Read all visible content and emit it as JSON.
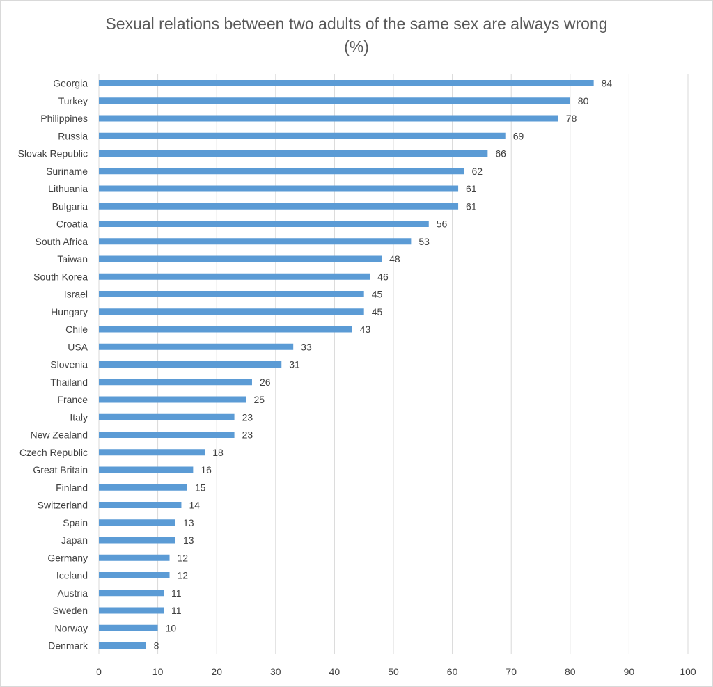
{
  "chart_data": {
    "type": "bar",
    "orientation": "horizontal",
    "title": "Sexual relations between two adults of the same sex are always wrong",
    "subtitle": "(%)",
    "categories": [
      "Georgia",
      "Turkey",
      "Philippines",
      "Russia",
      "Slovak Republic",
      "Suriname",
      "Lithuania",
      "Bulgaria",
      "Croatia",
      "South Africa",
      "Taiwan",
      "South Korea",
      "Israel",
      "Hungary",
      "Chile",
      "USA",
      "Slovenia",
      "Thailand",
      "France",
      "Italy",
      "New Zealand",
      "Czech Republic",
      "Great Britain",
      "Finland",
      "Switzerland",
      "Spain",
      "Japan",
      "Germany",
      "Iceland",
      "Austria",
      "Sweden",
      "Norway",
      "Denmark"
    ],
    "values": [
      84,
      80,
      78,
      69,
      66,
      62,
      61,
      61,
      56,
      53,
      48,
      46,
      45,
      45,
      43,
      33,
      31,
      26,
      25,
      23,
      23,
      18,
      16,
      15,
      14,
      13,
      13,
      12,
      12,
      11,
      11,
      10,
      8
    ],
    "xlim": [
      0,
      100
    ],
    "xticks": [
      0,
      10,
      20,
      30,
      40,
      50,
      60,
      70,
      80,
      90,
      100
    ],
    "grid": true,
    "legend": "none",
    "bar_color": "#5b9bd5",
    "grid_color": "#d9d9d9"
  }
}
